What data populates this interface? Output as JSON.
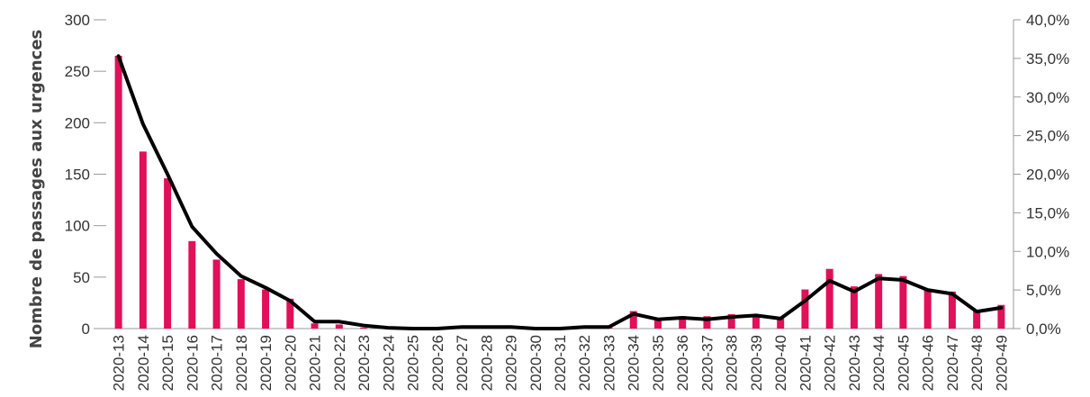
{
  "chart_data": {
    "type": "bar",
    "title": "",
    "xlabel": "",
    "ylabel": "Nombre de passages aux urgences",
    "y2label": "",
    "ylim": [
      0,
      300
    ],
    "y2lim": [
      0,
      40
    ],
    "yticks": [
      "0",
      "50",
      "100",
      "150",
      "200",
      "250",
      "300"
    ],
    "y2ticks": [
      "0,0%",
      "5,0%",
      "10,0%",
      "15,0%",
      "20,0%",
      "25,0%",
      "30,0%",
      "35,0%",
      "40,0%"
    ],
    "grid": false,
    "legend": "none",
    "categories": [
      "2020-13",
      "2020-14",
      "2020-15",
      "2020-16",
      "2020-17",
      "2020-18",
      "2020-19",
      "2020-20",
      "2020-21",
      "2020-22",
      "2020-23",
      "2020-24",
      "2020-25",
      "2020-26",
      "2020-27",
      "2020-28",
      "2020-29",
      "2020-30",
      "2020-31",
      "2020-32",
      "2020-33",
      "2020-34",
      "2020-35",
      "2020-36",
      "2020-37",
      "2020-38",
      "2020-39",
      "2020-40",
      "2020-41",
      "2020-42",
      "2020-43",
      "2020-44",
      "2020-45",
      "2020-46",
      "2020-47",
      "2020-48",
      "2020-49"
    ],
    "series": [
      {
        "type": "bar",
        "axis": "left",
        "color": "#e0105a",
        "values": [
          265,
          172,
          146,
          85,
          67,
          48,
          38,
          29,
          5,
          4,
          1,
          0,
          0,
          0,
          1,
          1,
          1,
          0,
          0,
          1,
          1,
          17,
          10,
          12,
          12,
          14,
          12,
          10,
          38,
          58,
          41,
          53,
          51,
          38,
          36,
          17,
          23
        ]
      },
      {
        "type": "line",
        "axis": "right",
        "color": "#000000",
        "values": [
          35.3,
          26.5,
          20.0,
          13.2,
          9.7,
          6.8,
          5.3,
          3.6,
          0.9,
          0.9,
          0.4,
          0.1,
          0.0,
          0.0,
          0.2,
          0.2,
          0.2,
          0.0,
          0.0,
          0.2,
          0.2,
          1.9,
          1.2,
          1.4,
          1.2,
          1.5,
          1.7,
          1.3,
          3.6,
          6.2,
          4.8,
          6.5,
          6.3,
          5.0,
          4.5,
          2.2,
          2.7
        ]
      }
    ]
  }
}
